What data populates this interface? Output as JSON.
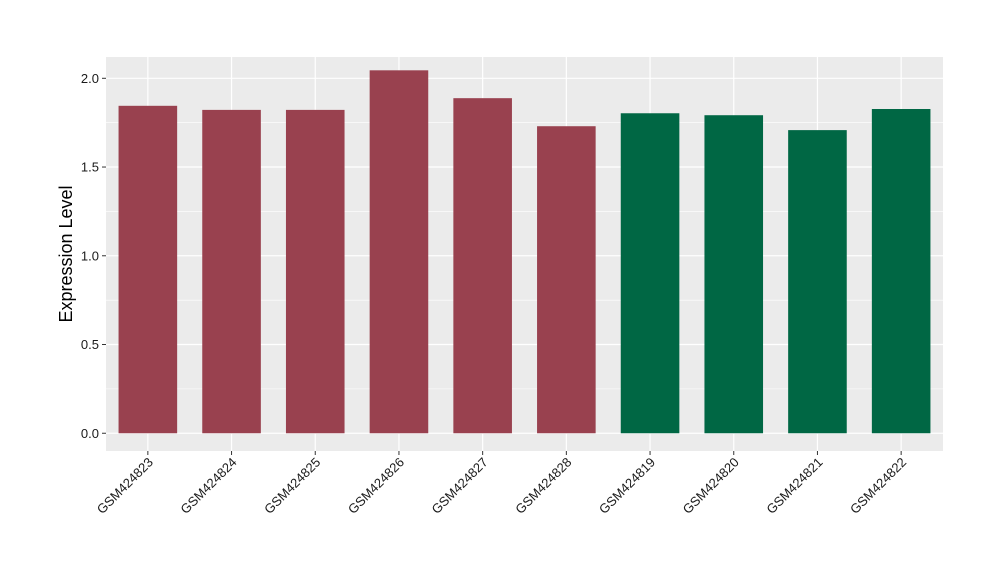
{
  "chart_data": {
    "type": "bar",
    "title": "",
    "xlabel": "",
    "ylabel": "Expression Level",
    "ylim": [
      -0.1,
      2.12
    ],
    "yticks": [
      0.0,
      0.5,
      1.0,
      1.5,
      2.0
    ],
    "ytick_labels": [
      "0.0",
      "0.5",
      "1.0",
      "1.5",
      "2.0"
    ],
    "grid": true,
    "legend": "none",
    "categories": [
      "GSM424823",
      "GSM424824",
      "GSM424825",
      "GSM424826",
      "GSM424827",
      "GSM424828",
      "GSM424819",
      "GSM424820",
      "GSM424821",
      "GSM424822"
    ],
    "values": [
      1.845,
      1.822,
      1.822,
      2.045,
      1.888,
      1.73,
      1.803,
      1.792,
      1.708,
      1.827
    ],
    "bar_colors": [
      "#99414f",
      "#99414f",
      "#99414f",
      "#99414f",
      "#99414f",
      "#99414f",
      "#006744",
      "#006744",
      "#006744",
      "#006744"
    ],
    "panel_background": "#ebebeb",
    "grid_color": "#ffffff"
  }
}
